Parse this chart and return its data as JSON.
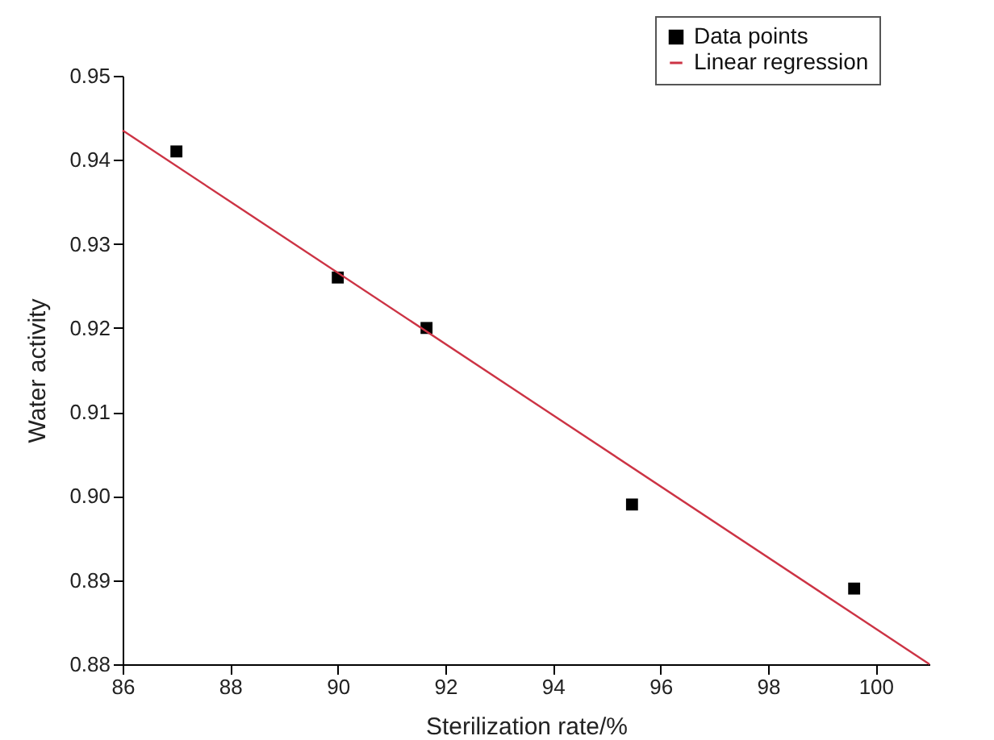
{
  "chart_data": {
    "type": "scatter",
    "xlabel": "Sterilization rate/%",
    "ylabel": "Water activity",
    "xlim": [
      86,
      101
    ],
    "xticks": [
      86,
      88,
      90,
      92,
      94,
      96,
      98,
      100
    ],
    "ylim": [
      0.88,
      0.95
    ],
    "yticks": [
      0.88,
      0.89,
      {
        "value": 0.9,
        "label": "0.90"
      },
      0.91,
      0.92,
      0.93,
      0.94,
      0.95
    ],
    "grid": false,
    "legend": "top right",
    "series": [
      {
        "name": "Data points",
        "marker": "square",
        "color": "#000000",
        "x": [
          87.0,
          90.0,
          91.65,
          95.47,
          99.6
        ],
        "values": [
          0.941,
          0.926,
          0.92,
          0.899,
          0.889
        ]
      },
      {
        "name": "Linear regression",
        "type": "line",
        "line_style": "solid",
        "color": "#cc3344",
        "x": [
          86,
          101
        ],
        "values": [
          0.9435,
          0.88
        ]
      }
    ]
  }
}
